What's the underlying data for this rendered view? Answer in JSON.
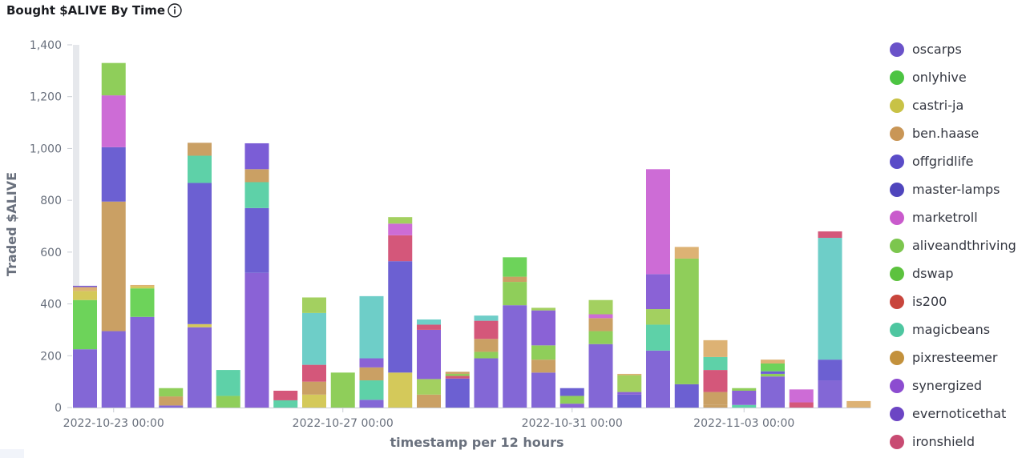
{
  "title": "Bought $ALIVE By Time",
  "info_icon": "info-icon",
  "corner_icon": "list-icon",
  "chart_data": {
    "type": "bar",
    "stacked": true,
    "xlabel": "timestamp per 12 hours",
    "ylabel": "Traded $ALIVE",
    "ylim": [
      0,
      1400
    ],
    "yticks": [
      "0",
      "200",
      "400",
      "600",
      "800",
      "1,000",
      "1,200",
      "1,400"
    ],
    "xticks": [
      {
        "label": "2022-10-23 00:00",
        "index": 1
      },
      {
        "label": "2022-10-27 00:00",
        "index": 9
      },
      {
        "label": "2022-10-31 00:00",
        "index": 17
      },
      {
        "label": "2022-11-03 00:00",
        "index": 23
      }
    ],
    "grid": false,
    "legend_position": "right",
    "series": [
      {
        "name": "oscarps",
        "color": "#6a52c9"
      },
      {
        "name": "onlyhive",
        "color": "#4cc442"
      },
      {
        "name": "castri-ja",
        "color": "#c8c246"
      },
      {
        "name": "ben.haase",
        "color": "#c99656"
      },
      {
        "name": "offgridlife",
        "color": "#5a4cc8"
      },
      {
        "name": "master-lamps",
        "color": "#4f45bd"
      },
      {
        "name": "marketroll",
        "color": "#c95acc"
      },
      {
        "name": "aliveandthriving",
        "color": "#7cc64e"
      },
      {
        "name": "dswap",
        "color": "#5cc23e"
      },
      {
        "name": "is200",
        "color": "#c8453c"
      },
      {
        "name": "magicbeans",
        "color": "#4ec6a0"
      },
      {
        "name": "pixresteemer",
        "color": "#c3913c"
      },
      {
        "name": "synergized",
        "color": "#8c4cd0"
      },
      {
        "name": "evernoticethat",
        "color": "#6c45c4"
      },
      {
        "name": "ironshield",
        "color": "#c84b72"
      }
    ],
    "bars": [
      {
        "segments": [
          {
            "value": 225,
            "color": "#8367d6"
          },
          {
            "value": 190,
            "color": "#6dd35a"
          },
          {
            "value": 35,
            "color": "#d4c95a"
          },
          {
            "value": 15,
            "color": "#ddb274"
          },
          {
            "value": 5,
            "color": "#7b5dd6"
          }
        ]
      },
      {
        "segments": [
          {
            "value": 295,
            "color": "#8367d6"
          },
          {
            "value": 500,
            "color": "#caa064"
          },
          {
            "value": 210,
            "color": "#6c60d2"
          },
          {
            "value": 200,
            "color": "#cd6cd6"
          },
          {
            "value": 125,
            "color": "#8fce5a"
          }
        ]
      },
      {
        "segments": [
          {
            "value": 350,
            "color": "#8367d6"
          },
          {
            "value": 110,
            "color": "#6dd35a"
          },
          {
            "value": 8,
            "color": "#d4c95a"
          },
          {
            "value": 5,
            "color": "#ddb274"
          }
        ]
      },
      {
        "segments": [
          {
            "value": 8,
            "color": "#8367d6"
          },
          {
            "value": 35,
            "color": "#caa064"
          },
          {
            "value": 32,
            "color": "#8fce5a"
          }
        ]
      },
      {
        "segments": [
          {
            "value": 310,
            "color": "#8367d6"
          },
          {
            "value": 12,
            "color": "#d4c95a"
          },
          {
            "value": 545,
            "color": "#6c60d2"
          },
          {
            "value": 105,
            "color": "#5ed1a8"
          },
          {
            "value": 50,
            "color": "#caa064"
          }
        ]
      },
      {
        "segments": [
          {
            "value": 45,
            "color": "#8fce5a"
          },
          {
            "value": 100,
            "color": "#5ed1a8"
          }
        ]
      },
      {
        "segments": [
          {
            "value": 520,
            "color": "#8a62d6"
          },
          {
            "value": 250,
            "color": "#6c60d2"
          },
          {
            "value": 100,
            "color": "#5ed1a8"
          },
          {
            "value": 50,
            "color": "#caa064"
          },
          {
            "value": 100,
            "color": "#7b5dd6"
          }
        ]
      },
      {
        "segments": [
          {
            "value": 28,
            "color": "#5ed1a8"
          },
          {
            "value": 37,
            "color": "#d4577a"
          }
        ]
      },
      {
        "segments": [
          {
            "value": 50,
            "color": "#d4c95a"
          },
          {
            "value": 50,
            "color": "#caa064"
          },
          {
            "value": 65,
            "color": "#d4577a"
          },
          {
            "value": 200,
            "color": "#6ecec8"
          },
          {
            "value": 60,
            "color": "#a3d060"
          }
        ]
      },
      {
        "segments": [
          {
            "value": 135,
            "color": "#8fce5a"
          }
        ]
      },
      {
        "segments": [
          {
            "value": 30,
            "color": "#8367d6"
          },
          {
            "value": 75,
            "color": "#5ed1a8"
          },
          {
            "value": 50,
            "color": "#caa064"
          },
          {
            "value": 35,
            "color": "#8a62d6"
          },
          {
            "value": 240,
            "color": "#6ecec8"
          }
        ]
      },
      {
        "segments": [
          {
            "value": 135,
            "color": "#d4c95a"
          },
          {
            "value": 430,
            "color": "#6c60d2"
          },
          {
            "value": 100,
            "color": "#d4577a"
          },
          {
            "value": 45,
            "color": "#cd6cd6"
          },
          {
            "value": 25,
            "color": "#a3d060"
          }
        ]
      },
      {
        "segments": [
          {
            "value": 50,
            "color": "#caa064"
          },
          {
            "value": 60,
            "color": "#a3d060"
          },
          {
            "value": 190,
            "color": "#8a62d6"
          },
          {
            "value": 20,
            "color": "#d4577a"
          },
          {
            "value": 20,
            "color": "#6ecec8"
          }
        ]
      },
      {
        "segments": [
          {
            "value": 112,
            "color": "#6c60d2"
          },
          {
            "value": 10,
            "color": "#d4577a"
          },
          {
            "value": 8,
            "color": "#8fce5a"
          },
          {
            "value": 8,
            "color": "#caa064"
          }
        ]
      },
      {
        "segments": [
          {
            "value": 190,
            "color": "#8367d6"
          },
          {
            "value": 25,
            "color": "#8fce5a"
          },
          {
            "value": 50,
            "color": "#caa064"
          },
          {
            "value": 70,
            "color": "#d4577a"
          },
          {
            "value": 20,
            "color": "#6ecec8"
          }
        ]
      },
      {
        "segments": [
          {
            "value": 395,
            "color": "#8367d6"
          },
          {
            "value": 90,
            "color": "#8fce5a"
          },
          {
            "value": 20,
            "color": "#caa064"
          },
          {
            "value": 75,
            "color": "#6dd35a"
          }
        ]
      },
      {
        "segments": [
          {
            "value": 135,
            "color": "#8367d6"
          },
          {
            "value": 50,
            "color": "#caa064"
          },
          {
            "value": 55,
            "color": "#8fce5a"
          },
          {
            "value": 135,
            "color": "#8a62d6"
          },
          {
            "value": 10,
            "color": "#a3d060"
          }
        ]
      },
      {
        "segments": [
          {
            "value": 15,
            "color": "#8a62d6"
          },
          {
            "value": 30,
            "color": "#8fce5a"
          },
          {
            "value": 30,
            "color": "#6c60d2"
          }
        ]
      },
      {
        "segments": [
          {
            "value": 245,
            "color": "#8367d6"
          },
          {
            "value": 50,
            "color": "#8fce5a"
          },
          {
            "value": 50,
            "color": "#caa064"
          },
          {
            "value": 15,
            "color": "#cd6cd6"
          },
          {
            "value": 55,
            "color": "#a3d060"
          }
        ]
      },
      {
        "segments": [
          {
            "value": 50,
            "color": "#6c60d2"
          },
          {
            "value": 10,
            "color": "#8a62d6"
          },
          {
            "value": 65,
            "color": "#a3d060"
          },
          {
            "value": 5,
            "color": "#ddb274"
          }
        ]
      },
      {
        "segments": [
          {
            "value": 220,
            "color": "#8367d6"
          },
          {
            "value": 100,
            "color": "#5ed1a8"
          },
          {
            "value": 60,
            "color": "#a3d060"
          },
          {
            "value": 135,
            "color": "#8a62d6"
          },
          {
            "value": 405,
            "color": "#cd6cd6"
          }
        ]
      },
      {
        "segments": [
          {
            "value": 90,
            "color": "#6c60d2"
          },
          {
            "value": 485,
            "color": "#8fce5a"
          },
          {
            "value": 45,
            "color": "#ddb274"
          }
        ]
      },
      {
        "segments": [
          {
            "value": 10,
            "color": "#caa064"
          },
          {
            "value": 50,
            "color": "#caa064"
          },
          {
            "value": 85,
            "color": "#d4577a"
          },
          {
            "value": 50,
            "color": "#5ed1a8"
          },
          {
            "value": 65,
            "color": "#ddb274"
          }
        ]
      },
      {
        "segments": [
          {
            "value": 10,
            "color": "#5ed1a8"
          },
          {
            "value": 55,
            "color": "#8a62d6"
          },
          {
            "value": 10,
            "color": "#8fce5a"
          }
        ]
      },
      {
        "segments": [
          {
            "value": 120,
            "color": "#8367d6"
          },
          {
            "value": 10,
            "color": "#8fce5a"
          },
          {
            "value": 10,
            "color": "#6c60d2"
          },
          {
            "value": 30,
            "color": "#6dd35a"
          },
          {
            "value": 15,
            "color": "#ddb274"
          }
        ]
      },
      {
        "segments": [
          {
            "value": 20,
            "color": "#d4577a"
          },
          {
            "value": 50,
            "color": "#cd6cd6"
          }
        ]
      },
      {
        "segments": [
          {
            "value": 105,
            "color": "#8367d6"
          },
          {
            "value": 80,
            "color": "#6c60d2"
          },
          {
            "value": 470,
            "color": "#6ecec8"
          },
          {
            "value": 25,
            "color": "#d4577a"
          }
        ]
      },
      {
        "segments": [
          {
            "value": 25,
            "color": "#ddb274"
          }
        ]
      }
    ]
  }
}
